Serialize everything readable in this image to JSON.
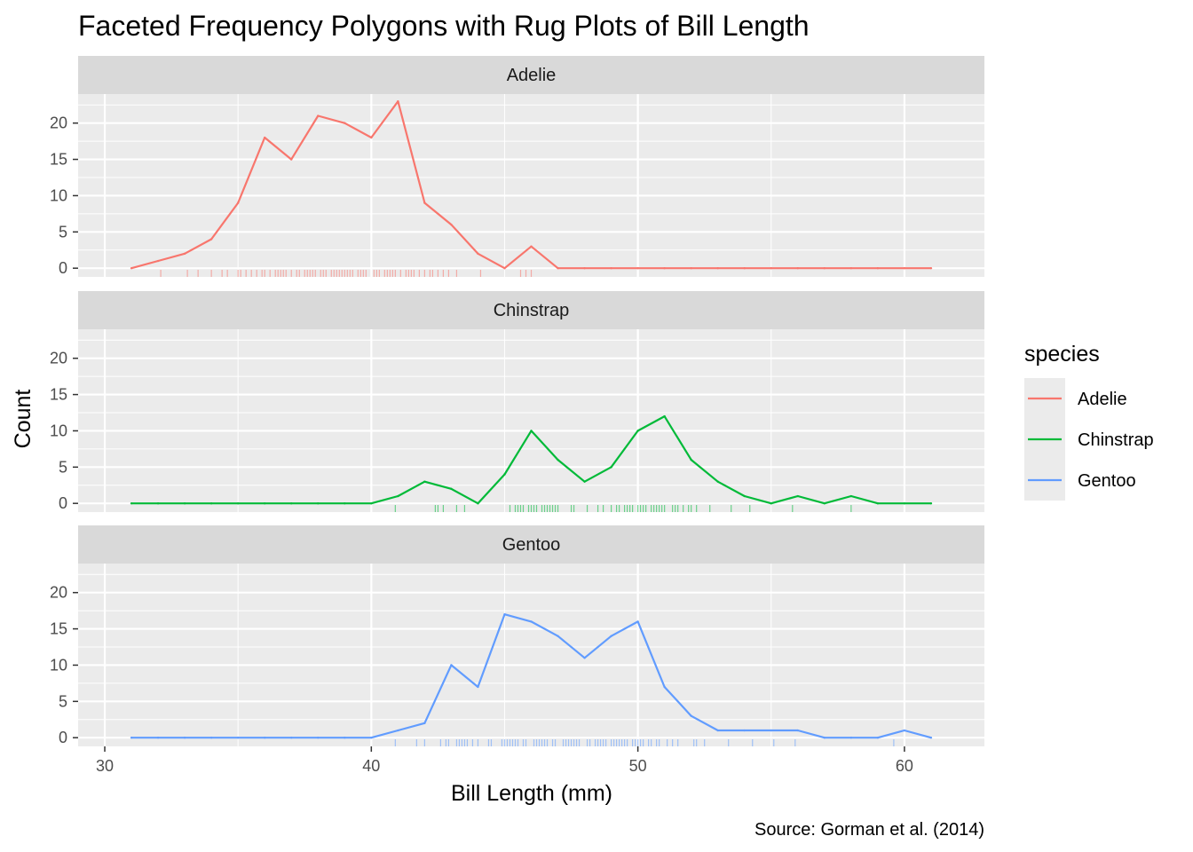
{
  "chart_data": {
    "type": "line",
    "title": "Faceted Frequency Polygons with Rug Plots of Bill Length",
    "xlabel": "Bill Length (mm)",
    "ylabel": "Count",
    "caption": "Source: Gorman et al. (2014)",
    "xlim": [
      29,
      63
    ],
    "ylim": [
      -1.2,
      24
    ],
    "x_ticks": [
      30,
      40,
      50,
      60
    ],
    "y_ticks": [
      0,
      5,
      10,
      15,
      20
    ],
    "grid": true,
    "legend": {
      "title": "species",
      "position": "right"
    },
    "x": [
      31,
      32,
      33,
      34,
      35,
      36,
      37,
      38,
      39,
      40,
      41,
      42,
      43,
      44,
      45,
      46,
      47,
      48,
      49,
      50,
      51,
      52,
      53,
      54,
      55,
      56,
      57,
      58,
      59,
      60,
      61
    ],
    "series": [
      {
        "name": "Adelie",
        "facet": "Adelie",
        "color": "#F8766D",
        "values": [
          0,
          1,
          2,
          4,
          9,
          18,
          15,
          21,
          20,
          18,
          23,
          9,
          6,
          2,
          0,
          3,
          0,
          0,
          0,
          0,
          0,
          0,
          0,
          0,
          0,
          0,
          0,
          0,
          0,
          0,
          0
        ],
        "rug": [
          32.1,
          33.1,
          33.5,
          34.0,
          34.4,
          34.6,
          35.0,
          35.1,
          35.3,
          35.5,
          35.7,
          35.9,
          36.0,
          36.2,
          36.4,
          36.5,
          36.6,
          36.7,
          36.8,
          37.0,
          37.2,
          37.3,
          37.5,
          37.6,
          37.7,
          37.8,
          37.9,
          38.1,
          38.2,
          38.3,
          38.5,
          38.6,
          38.7,
          38.8,
          38.9,
          39.0,
          39.1,
          39.2,
          39.3,
          39.5,
          39.6,
          39.7,
          39.8,
          40.1,
          40.2,
          40.3,
          40.5,
          40.6,
          40.7,
          40.8,
          40.9,
          41.1,
          41.3,
          41.4,
          41.5,
          41.6,
          41.8,
          42.0,
          42.2,
          42.3,
          42.5,
          42.7,
          42.9,
          43.2,
          44.1,
          45.6,
          45.8,
          46.0
        ]
      },
      {
        "name": "Chinstrap",
        "facet": "Chinstrap",
        "color": "#00BA38",
        "values": [
          0,
          0,
          0,
          0,
          0,
          0,
          0,
          0,
          0,
          0,
          1,
          3,
          2,
          0,
          4,
          10,
          6,
          3,
          5,
          10,
          12,
          6,
          3,
          1,
          0,
          1,
          0,
          1,
          0,
          0,
          0
        ],
        "rug": [
          40.9,
          42.4,
          42.5,
          42.7,
          43.2,
          43.5,
          45.2,
          45.4,
          45.5,
          45.6,
          45.7,
          45.9,
          46.0,
          46.1,
          46.2,
          46.4,
          46.5,
          46.6,
          46.7,
          46.8,
          46.9,
          47.0,
          47.5,
          47.6,
          48.1,
          48.5,
          48.7,
          49.0,
          49.2,
          49.3,
          49.5,
          49.6,
          49.7,
          49.8,
          50.0,
          50.1,
          50.2,
          50.3,
          50.5,
          50.6,
          50.7,
          50.8,
          50.9,
          51.0,
          51.3,
          51.4,
          51.5,
          51.7,
          51.9,
          52.0,
          52.2,
          52.7,
          53.5,
          54.2,
          55.8,
          58.0
        ]
      },
      {
        "name": "Gentoo",
        "facet": "Gentoo",
        "color": "#619CFF",
        "values": [
          0,
          0,
          0,
          0,
          0,
          0,
          0,
          0,
          0,
          0,
          1,
          2,
          10,
          7,
          17,
          16,
          14,
          11,
          14,
          16,
          7,
          3,
          1,
          1,
          1,
          1,
          0,
          0,
          0,
          1,
          0
        ],
        "rug": [
          40.9,
          41.7,
          42.0,
          42.6,
          42.8,
          42.9,
          43.2,
          43.3,
          43.4,
          43.5,
          43.6,
          43.8,
          44.0,
          44.4,
          44.5,
          44.9,
          45.0,
          45.1,
          45.2,
          45.3,
          45.4,
          45.5,
          45.7,
          45.8,
          46.1,
          46.2,
          46.3,
          46.4,
          46.5,
          46.6,
          46.8,
          46.9,
          47.2,
          47.3,
          47.4,
          47.5,
          47.6,
          47.7,
          47.8,
          48.1,
          48.2,
          48.4,
          48.5,
          48.6,
          48.7,
          48.8,
          49.0,
          49.1,
          49.2,
          49.3,
          49.4,
          49.5,
          49.6,
          49.8,
          49.9,
          50.0,
          50.1,
          50.2,
          50.4,
          50.5,
          50.7,
          50.8,
          51.1,
          51.3,
          51.5,
          52.1,
          52.2,
          52.5,
          53.4,
          54.3,
          55.1,
          55.9,
          59.6
        ]
      }
    ]
  }
}
